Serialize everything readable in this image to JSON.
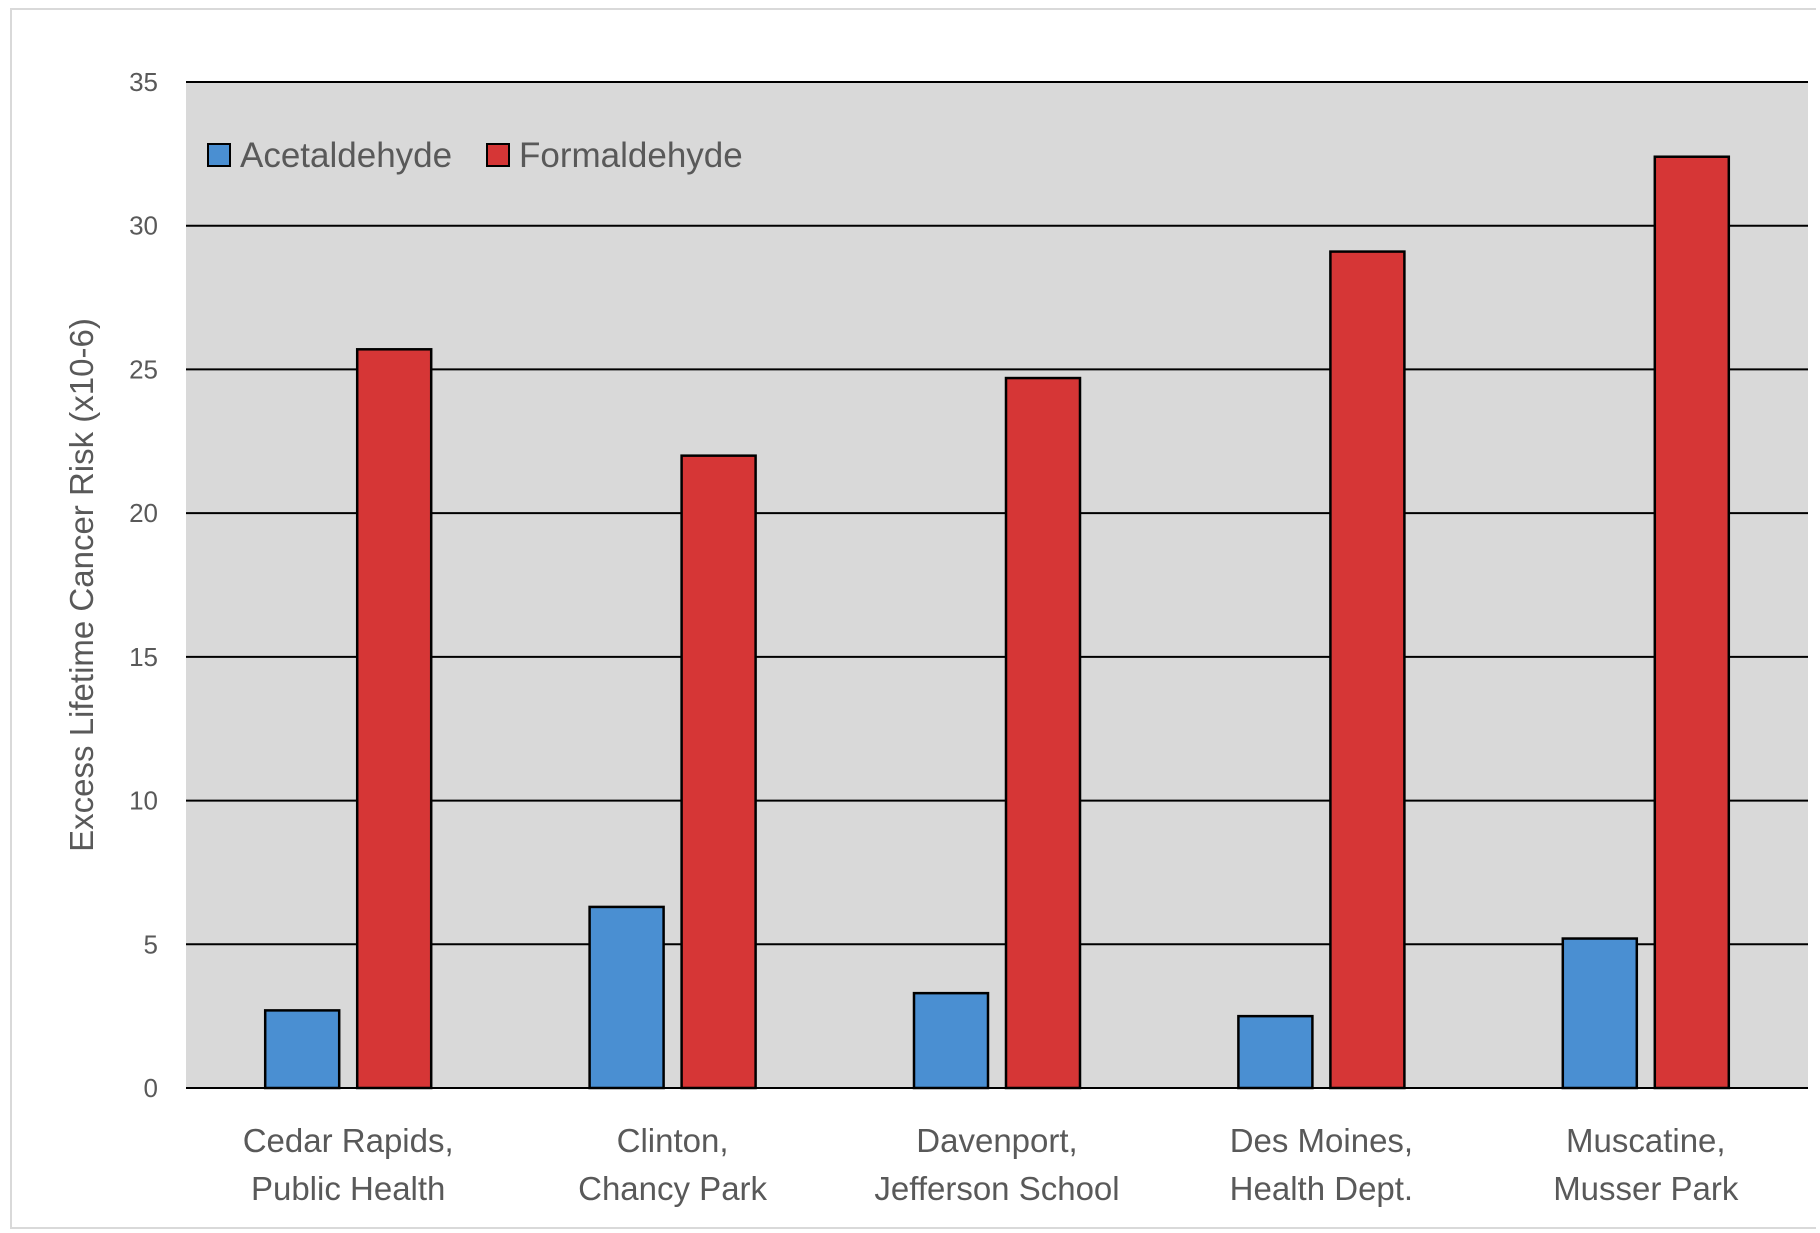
{
  "chart_data": {
    "type": "bar",
    "title": "",
    "xlabel": "",
    "ylabel": "Excess Lifetime Cancer Risk (x10-6)",
    "ylim": [
      0,
      35
    ],
    "yticks": [
      0,
      5,
      10,
      15,
      20,
      25,
      30,
      35
    ],
    "grid": true,
    "legend_position": "top-left",
    "categories": [
      [
        "Cedar Rapids,",
        "Public Health"
      ],
      [
        "Clinton,",
        "Chancy Park"
      ],
      [
        "Davenport,",
        "Jefferson School"
      ],
      [
        "Des Moines,",
        "Health Dept."
      ],
      [
        "Muscatine,",
        "Musser Park"
      ]
    ],
    "series": [
      {
        "name": "Acetaldehyde",
        "color": "#4a8fd2",
        "values": [
          2.7,
          6.3,
          3.3,
          2.5,
          5.2
        ]
      },
      {
        "name": "Formaldehyde",
        "color": "#d63636",
        "values": [
          25.7,
          22.0,
          24.7,
          29.1,
          32.4
        ]
      }
    ],
    "plot_background": "#d9d9d9"
  }
}
